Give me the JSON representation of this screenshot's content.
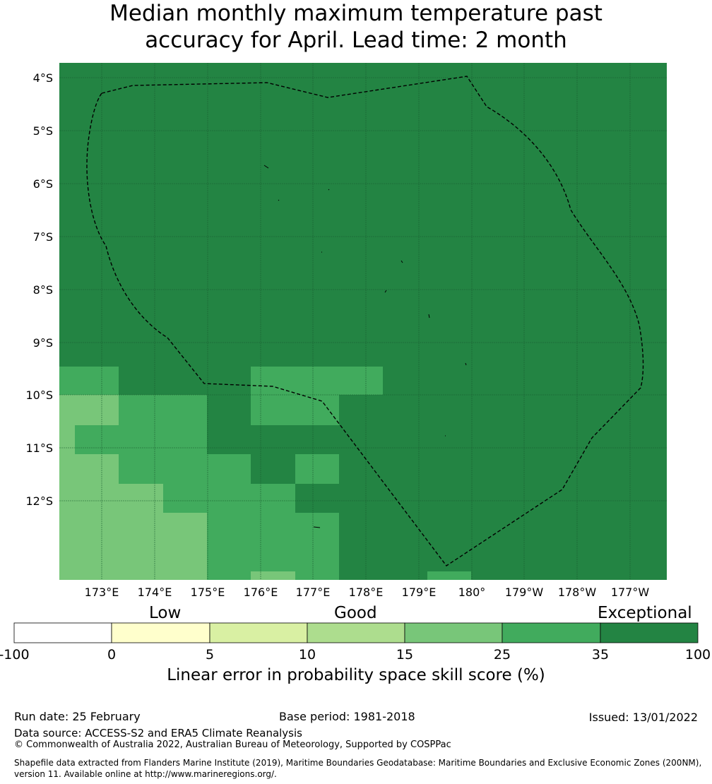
{
  "title": {
    "line1": "Median monthly maximum temperature past",
    "line2": "accuracy for April. Lead time: 2 month"
  },
  "map": {
    "lat_labels": [
      "4°S",
      "5°S",
      "6°S",
      "7°S",
      "8°S",
      "9°S",
      "10°S",
      "11°S",
      "12°S"
    ],
    "lon_labels": [
      "173°E",
      "174°E",
      "175°E",
      "176°E",
      "177°E",
      "178°E",
      "179°E",
      "180°",
      "179°W",
      "178°W",
      "177°W"
    ],
    "colors": {
      "exceptional_35_100": "#238443",
      "very_good_25_35": "#41ab5d",
      "good_15_25": "#78c679",
      "good_10_15": "#addd8e",
      "low_5_10": "#d9f0a3",
      "low_0_5": "#ffffcc",
      "below_0": "#ffffff",
      "eez_boundary": "#000000",
      "gridlines": "#1a5c2f"
    }
  },
  "colorbar": {
    "categories": [
      "Low",
      "Good",
      "Exceptional"
    ],
    "ticks": [
      "-100",
      "0",
      "5",
      "10",
      "15",
      "25",
      "35",
      "100"
    ],
    "colors": [
      "#ffffff",
      "#ffffcc",
      "#d9f0a3",
      "#addd8e",
      "#78c679",
      "#41ab5d",
      "#238443"
    ],
    "label": "Linear error in probability space skill score (%)"
  },
  "footer": {
    "run_date": "Run date: 25 February",
    "base_period": "Base period: 1981-2018",
    "issued": "Issued: 13/01/2022",
    "data_source": "Data source: ACCESS-S2 and ERA5 Climate Reanalysis",
    "copyright": "© Commonwealth of Australia 2022, Australian Bureau of Meteorology, Supported by COSPPac",
    "shapefile": "Shapefile data extracted from Flanders Marine Institute (2019), Maritime Boundaries Geodatabase: Maritime Boundaries and Exclusive Economic Zones (200NM), version 11. Available online at http://www.marineregions.org/."
  }
}
